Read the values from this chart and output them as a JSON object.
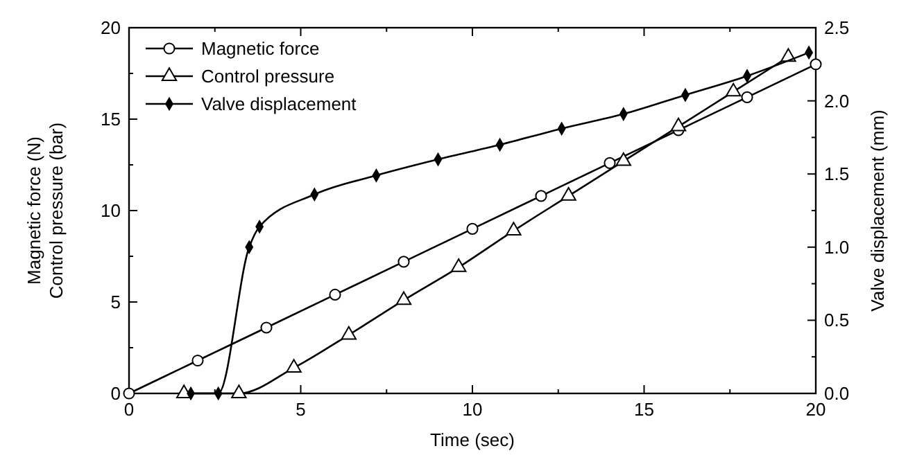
{
  "chart_data": {
    "type": "line",
    "xlabel": "Time (sec)",
    "ylabel": "Magnetic force (N)\nControl pressure (bar)",
    "y2label": "Valve displacement (mm)",
    "xlim": [
      0,
      20
    ],
    "ylim": [
      0,
      20
    ],
    "y2lim": [
      0,
      2.5
    ],
    "xticks": [
      0,
      {
        "value": 2.5,
        "label": null
      },
      5,
      {
        "value": 7.5,
        "label": null
      },
      10,
      {
        "value": 12.5,
        "label": null
      },
      15,
      {
        "value": 17.5,
        "label": null
      },
      20
    ],
    "yticks": [
      0,
      {
        "value": 2.5,
        "label": null
      },
      5,
      {
        "value": 7.5,
        "label": null
      },
      10,
      {
        "value": 12.5,
        "label": null
      },
      15,
      {
        "value": 17.5,
        "label": null
      },
      20
    ],
    "y2ticks": [
      {
        "value": 0,
        "label": "0.0"
      },
      {
        "value": 0.25,
        "label": null
      },
      {
        "value": 0.5,
        "label": "0.5"
      },
      {
        "value": 0.75,
        "label": null
      },
      {
        "value": 1,
        "label": "1.0"
      },
      {
        "value": 1.25,
        "label": null
      },
      {
        "value": 1.5,
        "label": "1.5"
      },
      {
        "value": 1.75,
        "label": null
      },
      {
        "value": 2,
        "label": "2.0"
      },
      {
        "value": 2.25,
        "label": null
      },
      {
        "value": 2.5,
        "label": "2.5"
      }
    ],
    "legend": "top left",
    "grid": false,
    "series": [
      {
        "name": "Magnetic force",
        "color": "#000000",
        "marker": "circle",
        "x": [
          0,
          2,
          4,
          6,
          8,
          10,
          12,
          14,
          16,
          18,
          20
        ],
        "values": [
          0,
          1.8,
          3.6,
          5.4,
          7.2,
          9,
          10.8,
          12.6,
          14.4,
          16.2,
          18
        ]
      },
      {
        "name": "Control pressure",
        "color": "#000000",
        "marker": "triangle",
        "x": [
          1.6,
          3.2,
          4.8,
          6.4,
          8,
          9.6,
          11.2,
          12.8,
          14.4,
          16,
          17.6,
          19.2
        ],
        "values": [
          0,
          0,
          1.4,
          3.2,
          5.1,
          6.9,
          8.9,
          10.8,
          12.7,
          14.6,
          16.5,
          18.4
        ]
      },
      {
        "name": "Valve displacement",
        "color": "#000000",
        "marker": "diamond",
        "axis": "y2",
        "x": [
          1.8,
          2.6,
          3.5,
          3.8,
          5.4,
          7.2,
          9,
          10.8,
          12.6,
          14.4,
          16.2,
          18,
          19.8
        ],
        "values": [
          0,
          0,
          1.0,
          1.14,
          1.36,
          1.49,
          1.6,
          1.7,
          1.81,
          1.91,
          2.04,
          2.17,
          2.33
        ]
      }
    ]
  }
}
